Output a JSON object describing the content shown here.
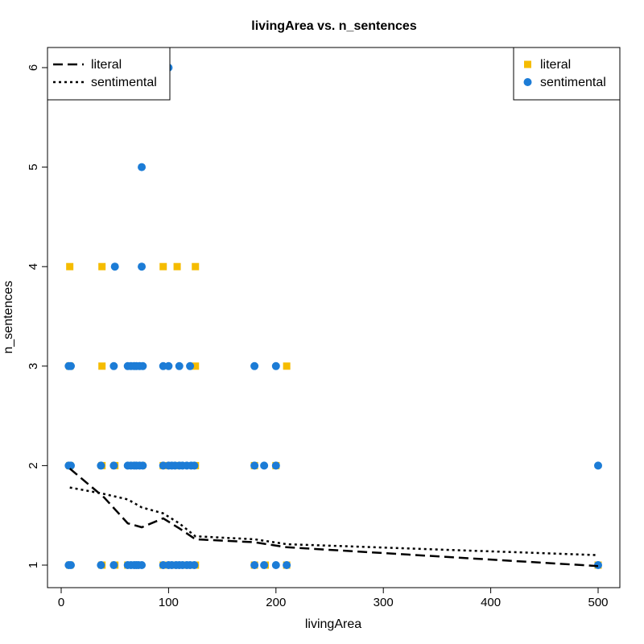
{
  "chart_data": {
    "type": "scatter",
    "title": "livingArea vs. n_sentences",
    "xlabel": "livingArea",
    "ylabel": "n_sentences",
    "xlim": [
      0,
      500
    ],
    "ylim": [
      1,
      6
    ],
    "xticks": [
      0,
      100,
      200,
      300,
      400,
      500
    ],
    "yticks": [
      1,
      2,
      3,
      4,
      5,
      6
    ],
    "grid": false,
    "series": [
      {
        "name": "literal",
        "marker": "square",
        "color": "#F5BC00",
        "points": [
          [
            8,
            1
          ],
          [
            38,
            1
          ],
          [
            50,
            1
          ],
          [
            62,
            1
          ],
          [
            72,
            1
          ],
          [
            95,
            1
          ],
          [
            105,
            1
          ],
          [
            115,
            1
          ],
          [
            125,
            1
          ],
          [
            180,
            1
          ],
          [
            190,
            1
          ],
          [
            210,
            1
          ],
          [
            500,
            1
          ],
          [
            8,
            2
          ],
          [
            38,
            2
          ],
          [
            50,
            2
          ],
          [
            65,
            2
          ],
          [
            75,
            2
          ],
          [
            95,
            2
          ],
          [
            110,
            2
          ],
          [
            125,
            2
          ],
          [
            180,
            2
          ],
          [
            200,
            2
          ],
          [
            8,
            3
          ],
          [
            38,
            3
          ],
          [
            125,
            3
          ],
          [
            210,
            3
          ],
          [
            8,
            4
          ],
          [
            38,
            4
          ],
          [
            95,
            4
          ],
          [
            108,
            4
          ],
          [
            125,
            4
          ]
        ]
      },
      {
        "name": "sentimental",
        "marker": "circle",
        "color": "#1C7CD6",
        "points": [
          [
            7,
            1
          ],
          [
            9,
            1
          ],
          [
            37,
            1
          ],
          [
            49,
            1
          ],
          [
            62,
            1
          ],
          [
            65,
            1
          ],
          [
            68,
            1
          ],
          [
            70,
            1
          ],
          [
            72,
            1
          ],
          [
            75,
            1
          ],
          [
            95,
            1
          ],
          [
            100,
            1
          ],
          [
            103,
            1
          ],
          [
            107,
            1
          ],
          [
            110,
            1
          ],
          [
            113,
            1
          ],
          [
            117,
            1
          ],
          [
            120,
            1
          ],
          [
            124,
            1
          ],
          [
            180,
            1
          ],
          [
            189,
            1
          ],
          [
            200,
            1
          ],
          [
            210,
            1
          ],
          [
            500,
            1
          ],
          [
            7,
            2
          ],
          [
            9,
            2
          ],
          [
            37,
            2
          ],
          [
            49,
            2
          ],
          [
            62,
            2
          ],
          [
            65,
            2
          ],
          [
            68,
            2
          ],
          [
            70,
            2
          ],
          [
            73,
            2
          ],
          [
            76,
            2
          ],
          [
            95,
            2
          ],
          [
            100,
            2
          ],
          [
            103,
            2
          ],
          [
            106,
            2
          ],
          [
            110,
            2
          ],
          [
            113,
            2
          ],
          [
            117,
            2
          ],
          [
            121,
            2
          ],
          [
            124,
            2
          ],
          [
            180,
            2
          ],
          [
            189,
            2
          ],
          [
            200,
            2
          ],
          [
            500,
            2
          ],
          [
            7,
            3
          ],
          [
            9,
            3
          ],
          [
            49,
            3
          ],
          [
            62,
            3
          ],
          [
            65,
            3
          ],
          [
            68,
            3
          ],
          [
            70,
            3
          ],
          [
            73,
            3
          ],
          [
            76,
            3
          ],
          [
            95,
            3
          ],
          [
            100,
            3
          ],
          [
            110,
            3
          ],
          [
            120,
            3
          ],
          [
            180,
            3
          ],
          [
            200,
            3
          ],
          [
            50,
            4
          ],
          [
            75,
            4
          ],
          [
            75,
            5
          ],
          [
            100,
            6
          ]
        ]
      }
    ],
    "trend_lines": [
      {
        "name": "literal",
        "style": "dashed",
        "points": [
          [
            8,
            1.97
          ],
          [
            40,
            1.68
          ],
          [
            62,
            1.42
          ],
          [
            75,
            1.38
          ],
          [
            95,
            1.47
          ],
          [
            110,
            1.37
          ],
          [
            125,
            1.26
          ],
          [
            180,
            1.23
          ],
          [
            210,
            1.18
          ],
          [
            500,
            0.99
          ]
        ]
      },
      {
        "name": "sentimental",
        "style": "dotted",
        "points": [
          [
            8,
            1.78
          ],
          [
            38,
            1.72
          ],
          [
            62,
            1.66
          ],
          [
            75,
            1.58
          ],
          [
            95,
            1.52
          ],
          [
            110,
            1.42
          ],
          [
            125,
            1.29
          ],
          [
            180,
            1.26
          ],
          [
            210,
            1.21
          ],
          [
            500,
            1.1
          ]
        ]
      }
    ],
    "legend_lines": {
      "position": "top-left",
      "entries": [
        {
          "label": "literal",
          "style": "dashed"
        },
        {
          "label": "sentimental",
          "style": "dotted"
        }
      ]
    },
    "legend_points": {
      "position": "top-right",
      "entries": [
        {
          "label": "literal",
          "marker": "square",
          "color": "#F5BC00"
        },
        {
          "label": "sentimental",
          "marker": "circle",
          "color": "#1C7CD6"
        }
      ]
    }
  }
}
